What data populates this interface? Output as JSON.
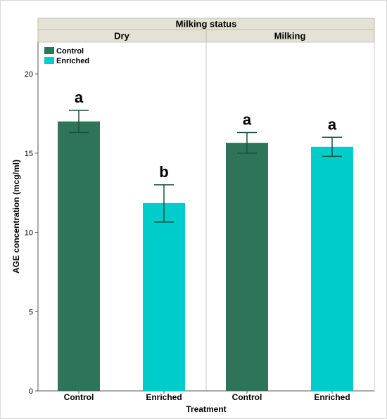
{
  "chart_data": {
    "type": "bar",
    "facet_header": "Milking status",
    "panels": [
      {
        "name": "Dry",
        "categories": [
          "Control",
          "Enriched"
        ],
        "values": [
          17.0,
          11.85
        ],
        "errors": [
          [
            16.3,
            17.7
          ],
          [
            10.65,
            13.0
          ]
        ],
        "significance": [
          "a",
          "b"
        ]
      },
      {
        "name": "Milking",
        "categories": [
          "Control",
          "Enriched"
        ],
        "values": [
          15.65,
          15.4
        ],
        "errors": [
          [
            15.0,
            16.3
          ],
          [
            14.8,
            16.0
          ]
        ],
        "significance": [
          "a",
          "a"
        ]
      }
    ],
    "xlabel": "Treatment",
    "ylabel": "AGE concentration (mcg/ml)",
    "ylim": [
      0,
      22
    ],
    "yticks": [
      0,
      5,
      10,
      15,
      20
    ],
    "legend": {
      "placement": "top-left",
      "entries": [
        {
          "name": "Control",
          "color": "#2e7458"
        },
        {
          "name": "Enriched",
          "color": "#00cccc"
        }
      ]
    },
    "colors": {
      "Control": "#2e7458",
      "Enriched": "#00cccc",
      "error_bar": "#1f4f3c",
      "header_bg": "#e3e2d5"
    }
  }
}
